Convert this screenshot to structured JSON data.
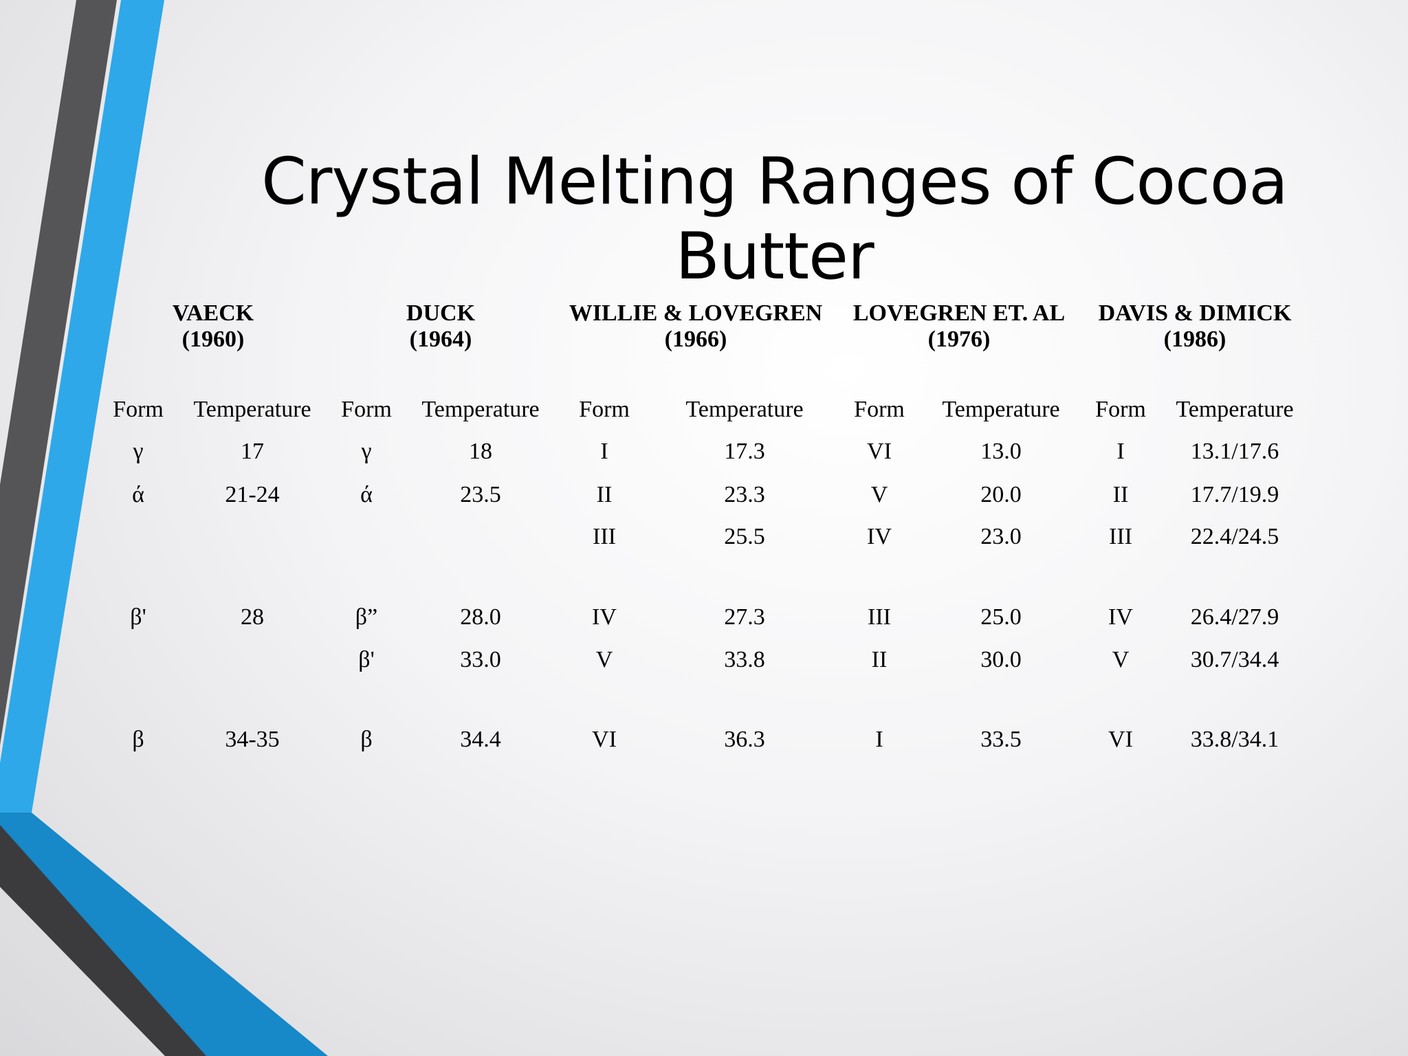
{
  "title": "Crystal Melting Ranges of Cocoa Butter",
  "table": {
    "groups": [
      {
        "name": "VAECK",
        "year": "(1960)"
      },
      {
        "name": "DUCK",
        "year": "(1964)"
      },
      {
        "name": "WILLIE & LOVEGREN",
        "year": "(1966)"
      },
      {
        "name": "LOVEGREN ET. AL",
        "year": "(1976)"
      },
      {
        "name": "DAVIS & DIMICK",
        "year": "(1986)"
      }
    ],
    "columns": [
      "Form",
      "Temperature",
      "Form",
      "Temperature",
      "Form",
      "Temperature",
      "Form",
      "Temperature",
      "Form",
      "Temperature"
    ],
    "rows": [
      [
        "γ",
        "17",
        "γ",
        "18",
        "I",
        "17.3",
        "VI",
        "13.0",
        "I",
        "13.1/17.6"
      ],
      [
        "ά",
        "21-24",
        "ά",
        "23.5",
        "II",
        "23.3",
        "V",
        "20.0",
        "II",
        "17.7/19.9"
      ],
      [
        null,
        null,
        null,
        null,
        "III",
        "25.5",
        "IV",
        "23.0",
        "III",
        "22.4/24.5"
      ],
      [
        "β'",
        "28",
        "β”",
        "28.0",
        "IV",
        "27.3",
        "III",
        "25.0",
        "IV",
        "26.4/27.9"
      ],
      [
        null,
        null,
        "β'",
        "33.0",
        "V",
        "33.8",
        "II",
        "30.0",
        "V",
        "30.7/34.4"
      ],
      [
        "β",
        "34-35",
        "β",
        "34.4",
        "VI",
        "36.3",
        "I",
        "33.5",
        "VI",
        "33.8/34.1"
      ]
    ]
  }
}
